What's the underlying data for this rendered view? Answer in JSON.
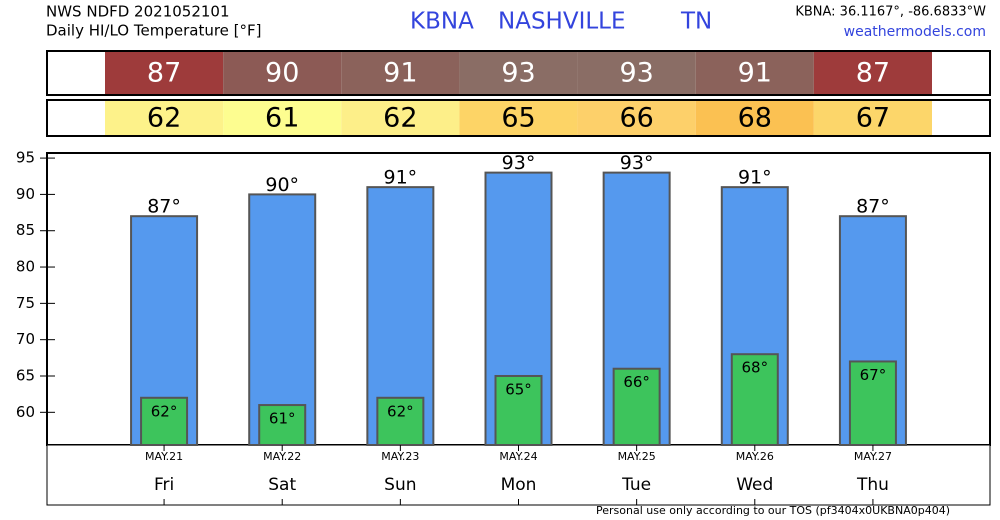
{
  "chart_data": {
    "type": "bar",
    "title": "NWS NDFD 2021052101",
    "subtitle": "Daily HI/LO Temperature [°F]",
    "station": "KBNA",
    "city": "NASHVILLE",
    "state": "TN",
    "location": "KBNA: 36.1167°, -86.6833°W",
    "site": "weathermodels.com",
    "footer": "Personal use only according to our TOS (pf3404x0UKBNA0p404)",
    "categories": [
      "MAY.21",
      "MAY.22",
      "MAY.23",
      "MAY.24",
      "MAY.25",
      "MAY.26",
      "MAY.27"
    ],
    "days": [
      "Fri",
      "Sat",
      "Sun",
      "Mon",
      "Tue",
      "Wed",
      "Thu"
    ],
    "series": [
      {
        "name": "HI",
        "color": "#5599ee",
        "values": [
          87,
          90,
          91,
          93,
          93,
          91,
          87
        ],
        "value_labels": [
          "87°",
          "90°",
          "91°",
          "93°",
          "93°",
          "91°",
          "87°"
        ],
        "cell_colors": [
          "#9e3b3b",
          "#8c5a55",
          "#8b625b",
          "#8a6d65",
          "#8a6d65",
          "#8b625b",
          "#9e3b3b"
        ],
        "text_color": "#ffffff"
      },
      {
        "name": "LO",
        "color": "#3dc45c",
        "values": [
          62,
          61,
          62,
          65,
          66,
          68,
          67
        ],
        "value_labels": [
          "62°",
          "61°",
          "62°",
          "65°",
          "66°",
          "68°",
          "67°"
        ],
        "cell_colors": [
          "#fdf28a",
          "#fdfd90",
          "#fdef89",
          "#fdd466",
          "#fdd06a",
          "#fbc152",
          "#fcd66a"
        ],
        "text_color": "#000000"
      }
    ],
    "ylim": [
      55.5,
      95.7
    ],
    "yticks": [
      60,
      65,
      70,
      75,
      80,
      85,
      90,
      95
    ]
  }
}
